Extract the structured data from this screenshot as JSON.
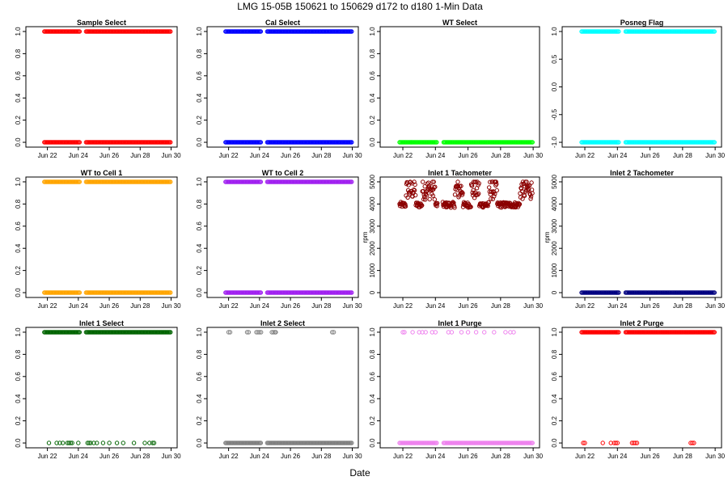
{
  "title": "LMG   15-05B    150621 to 150629    d172 to d180   1-Min Data",
  "xlabel": "Date",
  "x_ticks": [
    "Jun 22",
    "Jun 24",
    "Jun 26",
    "Jun 28",
    "Jun 30"
  ],
  "chart_data": [
    {
      "type": "scatter",
      "title": "Sample Select",
      "color": "#ff0000",
      "marker": "circle-open",
      "ylim": [
        0,
        1
      ],
      "yticks": [
        "0.0",
        "0.2",
        "0.4",
        "0.6",
        "0.8",
        "1.0"
      ],
      "ylabel": "",
      "pattern": "binary_dense",
      "values": [
        0,
        1
      ]
    },
    {
      "type": "scatter",
      "title": "Cal Select",
      "color": "#0000ff",
      "marker": "circle-open",
      "ylim": [
        0,
        1
      ],
      "yticks": [
        "0.0",
        "0.2",
        "0.4",
        "0.6",
        "0.8",
        "1.0"
      ],
      "ylabel": "",
      "pattern": "binary_dense",
      "values": [
        0,
        1
      ]
    },
    {
      "type": "scatter",
      "title": "WT Select",
      "color": "#00ff00",
      "marker": "circle-open",
      "ylim": [
        0,
        1
      ],
      "yticks": [
        "0.0",
        "0.2",
        "0.4",
        "0.6",
        "0.8",
        "1.0"
      ],
      "ylabel": "",
      "pattern": "zero",
      "values": [
        0
      ]
    },
    {
      "type": "scatter",
      "title": "Posneg Flag",
      "color": "#00ffff",
      "marker": "circle-open",
      "ylim": [
        -1,
        1
      ],
      "yticks": [
        "-1.0",
        "-0.5",
        "0.0",
        "0.5",
        "1.0"
      ],
      "ylabel": "",
      "pattern": "binary_dense",
      "values": [
        -1,
        1
      ]
    },
    {
      "type": "scatter",
      "title": "WT to Cell 1",
      "color": "#ffa500",
      "marker": "circle-open",
      "ylim": [
        0,
        1
      ],
      "yticks": [
        "0.0",
        "0.2",
        "0.4",
        "0.6",
        "0.8",
        "1.0"
      ],
      "ylabel": "",
      "pattern": "binary_dense",
      "values": [
        0,
        1
      ]
    },
    {
      "type": "scatter",
      "title": "WT to Cell 2",
      "color": "#a020f0",
      "marker": "circle-open",
      "ylim": [
        0,
        1
      ],
      "yticks": [
        "0.0",
        "0.2",
        "0.4",
        "0.6",
        "0.8",
        "1.0"
      ],
      "ylabel": "",
      "pattern": "binary_dense",
      "values": [
        0,
        1
      ]
    },
    {
      "type": "scatter",
      "title": "Inlet 1 Tachometer",
      "color": "#8b0000",
      "marker": "circle-open",
      "ylim": [
        0,
        5000
      ],
      "yticks": [
        "0",
        "1000",
        "2000",
        "3000",
        "4000",
        "5000"
      ],
      "ylabel": "rpm",
      "pattern": "tach",
      "values": [
        3800,
        5000
      ]
    },
    {
      "type": "scatter",
      "title": "Inlet 2 Tachometer",
      "color": "#000080",
      "marker": "circle-open",
      "ylim": [
        0,
        5000
      ],
      "yticks": [
        "0",
        "1000",
        "2000",
        "3000",
        "4000",
        "5000"
      ],
      "ylabel": "rpm",
      "pattern": "zero",
      "values": [
        0
      ]
    },
    {
      "type": "scatter",
      "title": "Inlet 1 Select",
      "color": "#006400",
      "marker": "circle-open",
      "ylim": [
        0,
        1
      ],
      "yticks": [
        "0.0",
        "0.2",
        "0.4",
        "0.6",
        "0.8",
        "1.0"
      ],
      "ylabel": "",
      "pattern": "mostly_one",
      "values": [
        0,
        1
      ]
    },
    {
      "type": "scatter",
      "title": "Inlet 2 Select",
      "color": "#808080",
      "marker": "circle-open",
      "ylim": [
        0,
        1
      ],
      "yticks": [
        "0.0",
        "0.2",
        "0.4",
        "0.6",
        "0.8",
        "1.0"
      ],
      "ylabel": "",
      "pattern": "mostly_zero",
      "values": [
        0,
        1
      ]
    },
    {
      "type": "scatter",
      "title": "Inlet 1 Purge",
      "color": "#ee82ee",
      "marker": "circle-open",
      "ylim": [
        0,
        1
      ],
      "yticks": [
        "0.0",
        "0.2",
        "0.4",
        "0.6",
        "0.8",
        "1.0"
      ],
      "ylabel": "",
      "pattern": "purge1",
      "values": [
        0,
        1
      ]
    },
    {
      "type": "scatter",
      "title": "Inlet 2 Purge",
      "color": "#ff0000",
      "marker": "circle-open",
      "ylim": [
        0,
        1
      ],
      "yticks": [
        "0.0",
        "0.2",
        "0.4",
        "0.6",
        "0.8",
        "1.0"
      ],
      "ylabel": "",
      "pattern": "purge2",
      "values": [
        0,
        1
      ]
    }
  ]
}
